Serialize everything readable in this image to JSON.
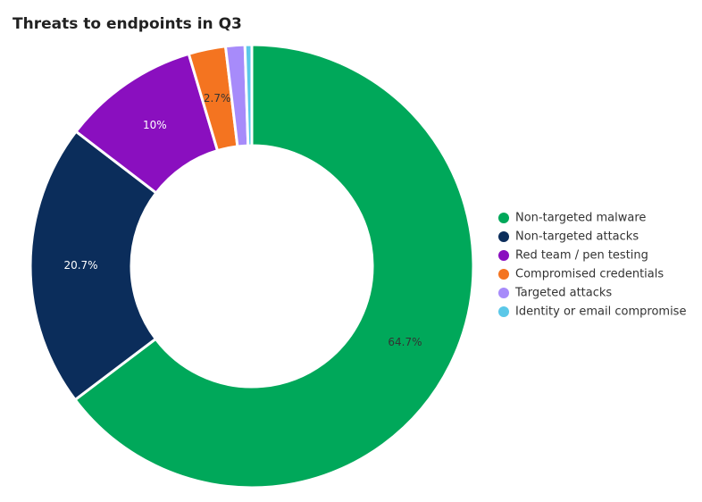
{
  "chart_data": {
    "type": "donut",
    "title": "Threats to endpoints in Q3",
    "categories": [
      "Non-targeted malware",
      "Non-targeted attacks",
      "Red team / pen testing",
      "Compromised credentials",
      "Targeted attacks",
      "Identity or email compromise"
    ],
    "values": [
      64.7,
      20.7,
      10,
      2.7,
      1.4,
      0.5
    ],
    "value_labels": [
      "64.7%",
      "20.7%",
      "10%",
      "2.7%",
      null,
      null
    ],
    "colors": [
      "#00a85a",
      "#0b2d5b",
      "#8a0fbf",
      "#f47420",
      "#a78bfa",
      "#5bc8e8"
    ],
    "legend": "right"
  }
}
